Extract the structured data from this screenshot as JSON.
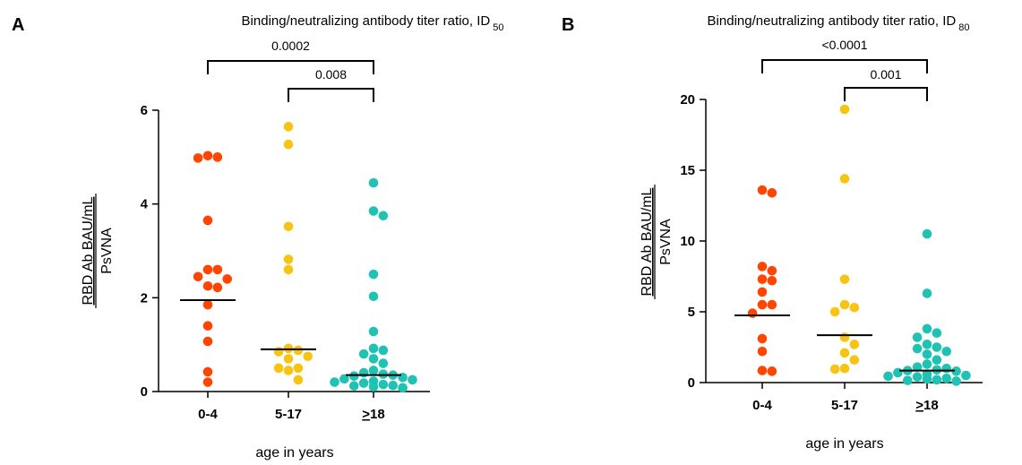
{
  "chart_data": [
    {
      "panel": "A",
      "type": "scatter",
      "title": "Binding/neutralizing antibody titer ratio, ID",
      "title_subscript": "50",
      "xlabel": "age in years",
      "ylabel_numerator": "RBD Ab BAU/mL",
      "ylabel_denominator": "PsVNA",
      "categories": [
        "0-4",
        "5-17",
        "≥18"
      ],
      "ylim": [
        0,
        6
      ],
      "yticks": [
        0,
        2,
        4,
        6
      ],
      "colors": [
        "#ff4500",
        "#f7c413",
        "#1fc2b3"
      ],
      "medians": [
        1.95,
        0.9,
        0.35
      ],
      "series": [
        {
          "category": "0-4",
          "values": [
            5.0,
            5.03,
            4.98,
            3.65,
            2.6,
            2.6,
            2.45,
            2.4,
            2.22,
            2.25,
            1.85,
            1.4,
            1.07,
            0.42,
            0.2
          ]
        },
        {
          "category": "5-17",
          "values": [
            5.65,
            5.27,
            3.52,
            2.82,
            2.6,
            0.92,
            0.85,
            0.88,
            0.75,
            0.7,
            0.5,
            0.5,
            0.45,
            0.25
          ]
        },
        {
          "category": "≥18",
          "values": [
            4.45,
            3.85,
            3.75,
            2.5,
            2.03,
            1.28,
            0.92,
            0.88,
            0.8,
            0.7,
            0.6,
            0.45,
            0.4,
            0.37,
            0.35,
            0.33,
            0.3,
            0.27,
            0.25,
            0.22,
            0.2,
            0.18,
            0.15,
            0.13,
            0.12,
            0.1,
            0.08
          ]
        }
      ],
      "comparisons": [
        {
          "from": "0-4",
          "to": "≥18",
          "p": "0.0002"
        },
        {
          "from": "5-17",
          "to": "≥18",
          "p": "0.008"
        }
      ]
    },
    {
      "panel": "B",
      "type": "scatter",
      "title": "Binding/neutralizing antibody titer ratio, ID",
      "title_subscript": "80",
      "xlabel": "age in years",
      "ylabel_numerator": "RBD Ab BAU/mL",
      "ylabel_denominator": "PsVNA",
      "categories": [
        "0-4",
        "5-17",
        "≥18"
      ],
      "ylim": [
        0,
        20
      ],
      "yticks": [
        0,
        5,
        10,
        15,
        20
      ],
      "colors": [
        "#ff4500",
        "#f7c413",
        "#1fc2b3"
      ],
      "medians": [
        4.75,
        3.35,
        0.85
      ],
      "series": [
        {
          "category": "0-4",
          "values": [
            13.6,
            13.4,
            8.2,
            7.9,
            7.3,
            7.2,
            6.4,
            5.5,
            5.5,
            4.9,
            3.1,
            2.2,
            0.85,
            0.8
          ]
        },
        {
          "category": "5-17",
          "values": [
            19.3,
            14.4,
            7.3,
            5.5,
            5.3,
            5.0,
            3.2,
            2.7,
            2.1,
            1.6,
            1.0,
            0.95
          ]
        },
        {
          "category": "≥18",
          "values": [
            10.5,
            6.3,
            3.8,
            3.5,
            3.2,
            2.7,
            2.5,
            2.4,
            2.2,
            2.0,
            1.6,
            1.3,
            1.1,
            1.0,
            0.9,
            0.85,
            0.8,
            0.7,
            0.6,
            0.5,
            0.45,
            0.4,
            0.3,
            0.25,
            0.2,
            0.15,
            0.1
          ]
        }
      ],
      "comparisons": [
        {
          "from": "0-4",
          "to": "≥18",
          "p": "<0.0001"
        },
        {
          "from": "5-17",
          "to": "≥18",
          "p": "0.001"
        }
      ]
    }
  ]
}
